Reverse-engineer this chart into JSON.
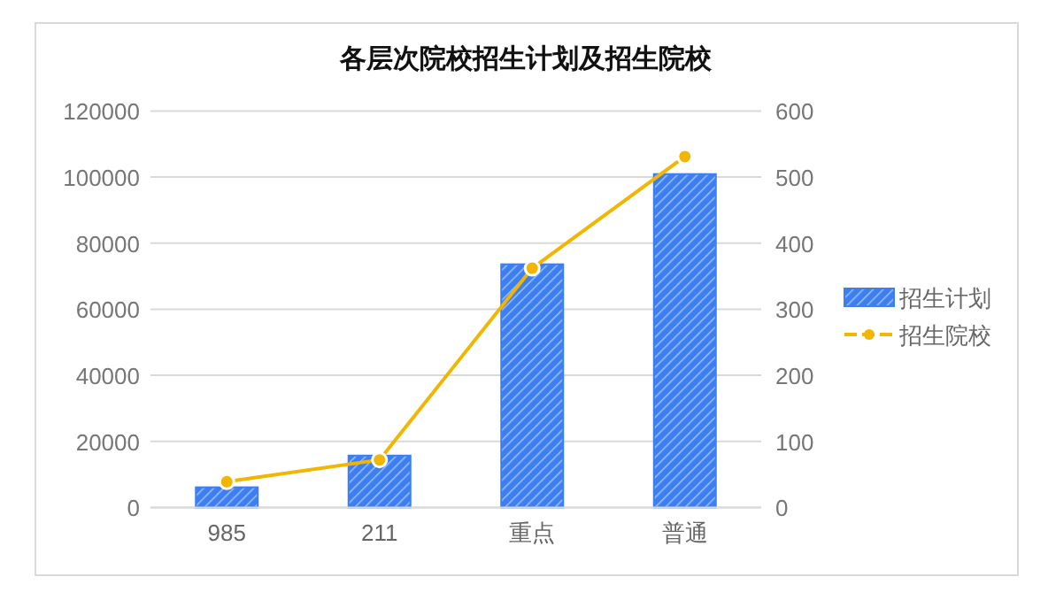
{
  "chart_data": {
    "type": "bar",
    "title": "各层次院校招生计划及招生院校",
    "categories": [
      "985",
      "211",
      "重点",
      "普通"
    ],
    "series": [
      {
        "name": "招生计划",
        "color": "#3d7ff0",
        "values": [
          6100,
          15700,
          73600,
          100900
        ]
      },
      {
        "name": "招生院校",
        "type": "line",
        "axis": "y2",
        "color": "#f2b600",
        "marker": "circle",
        "values": [
          39,
          72,
          362,
          531
        ]
      }
    ],
    "ylim": [
      0,
      120000
    ],
    "yticks": [
      0,
      20000,
      40000,
      60000,
      80000,
      100000,
      120000
    ],
    "y2lim": [
      0,
      600
    ],
    "y2ticks": [
      0,
      100,
      200,
      300,
      400,
      500,
      600
    ],
    "grid": "y",
    "legend": "right"
  }
}
